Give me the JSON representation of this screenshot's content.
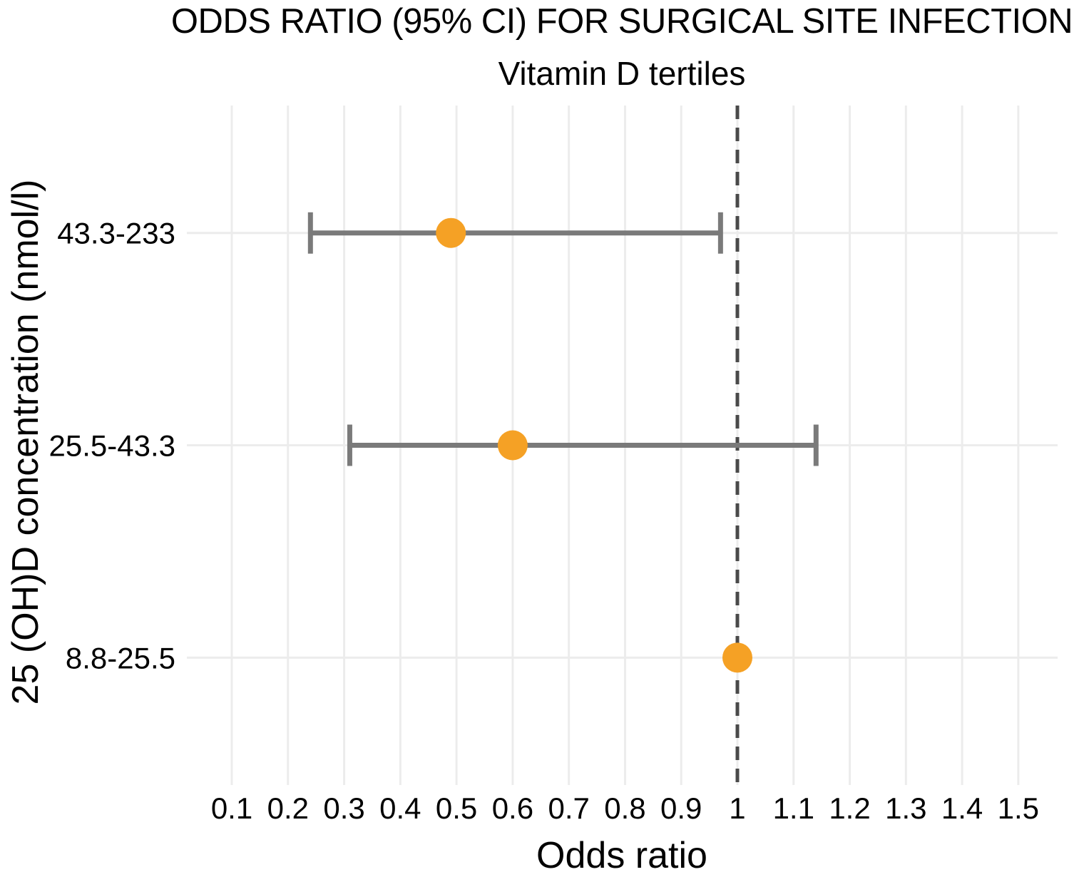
{
  "chart_data": {
    "type": "scatter",
    "subtype": "forest-plot-odds-ratio",
    "title": "ODDS RATIO (95% CI) FOR SURGICAL SITE INFECTION",
    "subtitle": "Vitamin D tertiles",
    "xlabel": "Odds ratio",
    "ylabel": "25 (OH)D concentration (nmol/l)",
    "xlim": [
      0.02,
      1.57
    ],
    "grid": true,
    "reference_line_x": 1,
    "x_ticks": [
      {
        "value": 0.1,
        "label": "0.1"
      },
      {
        "value": 0.2,
        "label": "0.2"
      },
      {
        "value": 0.3,
        "label": "0.3"
      },
      {
        "value": 0.4,
        "label": "0.4"
      },
      {
        "value": 0.5,
        "label": "0.5"
      },
      {
        "value": 0.6,
        "label": "0.6"
      },
      {
        "value": 0.7,
        "label": "0.7"
      },
      {
        "value": 0.8,
        "label": "0.8"
      },
      {
        "value": 0.9,
        "label": "0.9"
      },
      {
        "value": 1.0,
        "label": "1"
      },
      {
        "value": 1.1,
        "label": "1.1"
      },
      {
        "value": 1.2,
        "label": "1.2"
      },
      {
        "value": 1.3,
        "label": "1.3"
      },
      {
        "value": 1.4,
        "label": "1.4"
      },
      {
        "value": 1.5,
        "label": "1.5"
      }
    ],
    "rows": [
      {
        "category": "43.3-233",
        "odds_ratio": 0.49,
        "ci_low": 0.24,
        "ci_high": 0.97
      },
      {
        "category": "25.5-43.3",
        "odds_ratio": 0.6,
        "ci_low": 0.31,
        "ci_high": 1.14
      },
      {
        "category": "8.8-25.5",
        "odds_ratio": 1.0,
        "ci_low": null,
        "ci_high": null
      }
    ],
    "colors": {
      "point": "#F5A125",
      "error_bar": "#7A7A7A",
      "reference_line": "#4A4A4A",
      "gridline": "#ECECEC",
      "text": "#000000"
    }
  }
}
